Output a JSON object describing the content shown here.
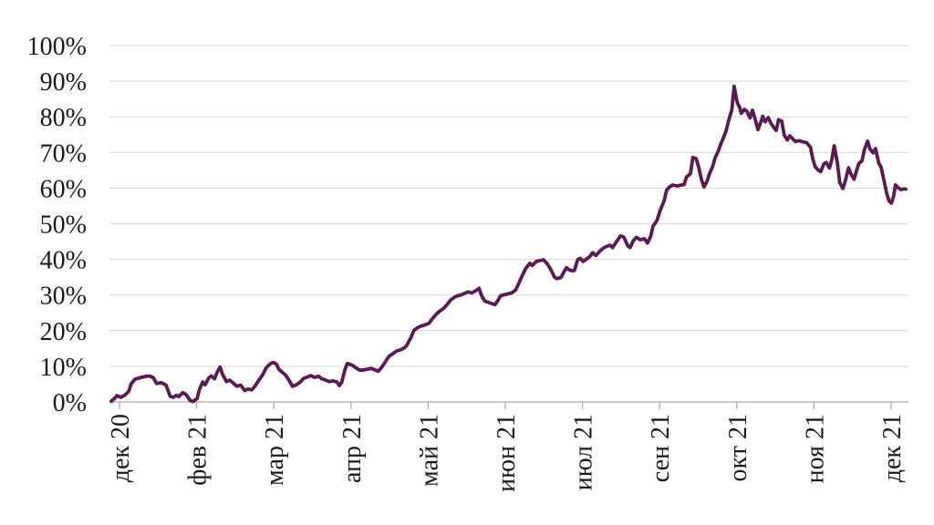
{
  "chart_data": {
    "type": "line",
    "grid": true,
    "legend": false,
    "ylim": [
      0,
      100
    ],
    "y_ticks": [
      {
        "value": 100,
        "label": "100%"
      },
      {
        "value": 90,
        "label": "90%"
      },
      {
        "value": 80,
        "label": "80%"
      },
      {
        "value": 70,
        "label": "70%"
      },
      {
        "value": 60,
        "label": "60%"
      },
      {
        "value": 50,
        "label": "50%"
      },
      {
        "value": 40,
        "label": "40%"
      },
      {
        "value": 30,
        "label": "30%"
      },
      {
        "value": 20,
        "label": "20%"
      },
      {
        "value": 10,
        "label": "10%"
      },
      {
        "value": 0,
        "label": "0%"
      }
    ],
    "x_tick_labels": [
      "дек 20",
      "фев 21",
      "мар 21",
      "апр 21",
      "май 21",
      "июн 21",
      "июл 21",
      "сен 21",
      "окт 21",
      "ноя 21",
      "дек 21"
    ],
    "series": [
      {
        "color": "#5b1a51",
        "points": [
          [
            0.0,
            0.2
          ],
          [
            0.005,
            1.2
          ],
          [
            0.007,
            1.8
          ],
          [
            0.012,
            1.3
          ],
          [
            0.017,
            1.9
          ],
          [
            0.022,
            3.0
          ],
          [
            0.025,
            5.1
          ],
          [
            0.03,
            6.4
          ],
          [
            0.038,
            6.9
          ],
          [
            0.044,
            7.2
          ],
          [
            0.048,
            7.3
          ],
          [
            0.053,
            6.8
          ],
          [
            0.057,
            5.2
          ],
          [
            0.063,
            5.4
          ],
          [
            0.069,
            4.7
          ],
          [
            0.074,
            1.6
          ],
          [
            0.078,
            1.3
          ],
          [
            0.082,
            1.9
          ],
          [
            0.085,
            1.5
          ],
          [
            0.09,
            2.6
          ],
          [
            0.094,
            2.1
          ],
          [
            0.099,
            0.5
          ],
          [
            0.103,
            0.1
          ],
          [
            0.108,
            1.0
          ],
          [
            0.111,
            3.5
          ],
          [
            0.115,
            5.6
          ],
          [
            0.118,
            4.8
          ],
          [
            0.123,
            6.8
          ],
          [
            0.126,
            7.3
          ],
          [
            0.13,
            6.5
          ],
          [
            0.133,
            8.2
          ],
          [
            0.137,
            9.8
          ],
          [
            0.14,
            7.8
          ],
          [
            0.145,
            5.7
          ],
          [
            0.149,
            6.1
          ],
          [
            0.154,
            5.2
          ],
          [
            0.158,
            4.4
          ],
          [
            0.163,
            4.7
          ],
          [
            0.168,
            3.2
          ],
          [
            0.172,
            3.6
          ],
          [
            0.177,
            3.4
          ],
          [
            0.181,
            4.5
          ],
          [
            0.186,
            6.2
          ],
          [
            0.191,
            7.8
          ],
          [
            0.195,
            9.6
          ],
          [
            0.2,
            10.7
          ],
          [
            0.204,
            11.1
          ],
          [
            0.208,
            10.6
          ],
          [
            0.211,
            9.1
          ],
          [
            0.216,
            8.2
          ],
          [
            0.22,
            7.4
          ],
          [
            0.225,
            5.6
          ],
          [
            0.228,
            4.4
          ],
          [
            0.233,
            4.8
          ],
          [
            0.238,
            5.6
          ],
          [
            0.242,
            6.6
          ],
          [
            0.247,
            7.0
          ],
          [
            0.251,
            7.4
          ],
          [
            0.256,
            6.9
          ],
          [
            0.261,
            7.2
          ],
          [
            0.265,
            6.5
          ],
          [
            0.27,
            6.1
          ],
          [
            0.274,
            5.7
          ],
          [
            0.279,
            5.9
          ],
          [
            0.284,
            5.6
          ],
          [
            0.287,
            4.6
          ],
          [
            0.29,
            5.5
          ],
          [
            0.294,
            9.0
          ],
          [
            0.297,
            10.8
          ],
          [
            0.301,
            10.5
          ],
          [
            0.304,
            10.2
          ],
          [
            0.309,
            9.4
          ],
          [
            0.313,
            8.9
          ],
          [
            0.318,
            9.0
          ],
          [
            0.323,
            9.2
          ],
          [
            0.327,
            9.4
          ],
          [
            0.332,
            9.0
          ],
          [
            0.336,
            8.6
          ],
          [
            0.34,
            9.6
          ],
          [
            0.343,
            10.6
          ],
          [
            0.347,
            12.0
          ],
          [
            0.35,
            12.9
          ],
          [
            0.355,
            13.6
          ],
          [
            0.359,
            14.3
          ],
          [
            0.364,
            14.6
          ],
          [
            0.369,
            15.2
          ],
          [
            0.372,
            15.9
          ],
          [
            0.377,
            18.0
          ],
          [
            0.381,
            20.1
          ],
          [
            0.386,
            20.9
          ],
          [
            0.39,
            21.3
          ],
          [
            0.395,
            21.6
          ],
          [
            0.4,
            22.1
          ],
          [
            0.404,
            23.3
          ],
          [
            0.409,
            24.6
          ],
          [
            0.413,
            25.4
          ],
          [
            0.418,
            26.2
          ],
          [
            0.423,
            27.4
          ],
          [
            0.427,
            28.6
          ],
          [
            0.432,
            29.4
          ],
          [
            0.436,
            29.8
          ],
          [
            0.441,
            30.1
          ],
          [
            0.444,
            30.4
          ],
          [
            0.449,
            30.9
          ],
          [
            0.454,
            30.6
          ],
          [
            0.458,
            31.1
          ],
          [
            0.463,
            31.9
          ],
          [
            0.466,
            29.9
          ],
          [
            0.47,
            28.3
          ],
          [
            0.474,
            28.0
          ],
          [
            0.479,
            27.6
          ],
          [
            0.483,
            27.3
          ],
          [
            0.487,
            28.6
          ],
          [
            0.49,
            29.8
          ],
          [
            0.495,
            30.1
          ],
          [
            0.499,
            30.3
          ],
          [
            0.504,
            30.6
          ],
          [
            0.509,
            31.4
          ],
          [
            0.513,
            33.3
          ],
          [
            0.518,
            35.8
          ],
          [
            0.522,
            37.6
          ],
          [
            0.527,
            38.9
          ],
          [
            0.53,
            38.3
          ],
          [
            0.535,
            39.4
          ],
          [
            0.54,
            39.7
          ],
          [
            0.544,
            39.9
          ],
          [
            0.549,
            38.7
          ],
          [
            0.553,
            37.2
          ],
          [
            0.558,
            35.0
          ],
          [
            0.561,
            34.6
          ],
          [
            0.566,
            34.9
          ],
          [
            0.57,
            36.6
          ],
          [
            0.573,
            37.7
          ],
          [
            0.576,
            37.1
          ],
          [
            0.58,
            36.8
          ],
          [
            0.583,
            36.9
          ],
          [
            0.587,
            39.9
          ],
          [
            0.59,
            40.3
          ],
          [
            0.594,
            39.4
          ],
          [
            0.598,
            40.1
          ],
          [
            0.602,
            40.7
          ],
          [
            0.606,
            41.9
          ],
          [
            0.61,
            41.1
          ],
          [
            0.614,
            42.1
          ],
          [
            0.619,
            43.1
          ],
          [
            0.623,
            43.6
          ],
          [
            0.628,
            44.0
          ],
          [
            0.631,
            43.3
          ],
          [
            0.636,
            45.0
          ],
          [
            0.641,
            46.6
          ],
          [
            0.645,
            46.3
          ],
          [
            0.65,
            43.9
          ],
          [
            0.653,
            43.3
          ],
          [
            0.657,
            45.2
          ],
          [
            0.661,
            46.2
          ],
          [
            0.666,
            45.5
          ],
          [
            0.671,
            45.8
          ],
          [
            0.675,
            44.6
          ],
          [
            0.679,
            46.5
          ],
          [
            0.682,
            49.3
          ],
          [
            0.687,
            51.0
          ],
          [
            0.691,
            53.8
          ],
          [
            0.696,
            56.5
          ],
          [
            0.699,
            59.4
          ],
          [
            0.703,
            60.4
          ],
          [
            0.707,
            60.9
          ],
          [
            0.712,
            60.6
          ],
          [
            0.716,
            60.8
          ],
          [
            0.721,
            61.0
          ],
          [
            0.724,
            63.1
          ],
          [
            0.729,
            64.1
          ],
          [
            0.732,
            68.6
          ],
          [
            0.736,
            68.3
          ],
          [
            0.739,
            66.2
          ],
          [
            0.743,
            62.3
          ],
          [
            0.746,
            60.3
          ],
          [
            0.75,
            62.0
          ],
          [
            0.753,
            64.1
          ],
          [
            0.757,
            66.0
          ],
          [
            0.76,
            68.5
          ],
          [
            0.764,
            70.3
          ],
          [
            0.767,
            72.3
          ],
          [
            0.77,
            73.8
          ],
          [
            0.774,
            76.2
          ],
          [
            0.777,
            78.9
          ],
          [
            0.781,
            81.9
          ],
          [
            0.784,
            88.6
          ],
          [
            0.788,
            84.0
          ],
          [
            0.791,
            82.6
          ],
          [
            0.793,
            81.0
          ],
          [
            0.797,
            82.1
          ],
          [
            0.8,
            81.6
          ],
          [
            0.804,
            79.7
          ],
          [
            0.807,
            81.9
          ],
          [
            0.811,
            78.9
          ],
          [
            0.814,
            76.4
          ],
          [
            0.818,
            78.8
          ],
          [
            0.82,
            80.2
          ],
          [
            0.823,
            78.6
          ],
          [
            0.827,
            79.8
          ],
          [
            0.83,
            78.3
          ],
          [
            0.834,
            77.0
          ],
          [
            0.837,
            76.2
          ],
          [
            0.84,
            79.2
          ],
          [
            0.844,
            78.8
          ],
          [
            0.847,
            74.9
          ],
          [
            0.851,
            73.5
          ],
          [
            0.854,
            74.7
          ],
          [
            0.858,
            73.8
          ],
          [
            0.861,
            73.1
          ],
          [
            0.866,
            73.3
          ],
          [
            0.87,
            73.0
          ],
          [
            0.875,
            72.8
          ],
          [
            0.88,
            71.5
          ],
          [
            0.883,
            68.2
          ],
          [
            0.886,
            66.0
          ],
          [
            0.89,
            65.0
          ],
          [
            0.893,
            64.6
          ],
          [
            0.897,
            66.8
          ],
          [
            0.9,
            67.2
          ],
          [
            0.904,
            65.6
          ],
          [
            0.907,
            68.0
          ],
          [
            0.91,
            71.9
          ],
          [
            0.914,
            67.0
          ],
          [
            0.917,
            61.5
          ],
          [
            0.921,
            59.9
          ],
          [
            0.924,
            62.0
          ],
          [
            0.928,
            65.7
          ],
          [
            0.931,
            64.0
          ],
          [
            0.935,
            62.5
          ],
          [
            0.938,
            64.8
          ],
          [
            0.941,
            66.9
          ],
          [
            0.945,
            67.7
          ],
          [
            0.948,
            70.8
          ],
          [
            0.952,
            73.2
          ],
          [
            0.955,
            71.0
          ],
          [
            0.959,
            69.9
          ],
          [
            0.962,
            71.1
          ],
          [
            0.966,
            67.0
          ],
          [
            0.969,
            65.9
          ],
          [
            0.972,
            62.8
          ],
          [
            0.976,
            58.6
          ],
          [
            0.979,
            56.4
          ],
          [
            0.982,
            55.8
          ],
          [
            0.985,
            57.9
          ],
          [
            0.987,
            60.9
          ],
          [
            0.991,
            60.0
          ],
          [
            0.994,
            59.6
          ],
          [
            0.998,
            59.8
          ],
          [
            1.0,
            59.7
          ]
        ]
      }
    ]
  },
  "colors": {
    "line": "#5b1a51",
    "gridline": "#d9d9d9",
    "axis": "#a9a9a9",
    "tick": "#a9a9a9",
    "text": "#1a1a1a",
    "background": "#ffffff"
  }
}
